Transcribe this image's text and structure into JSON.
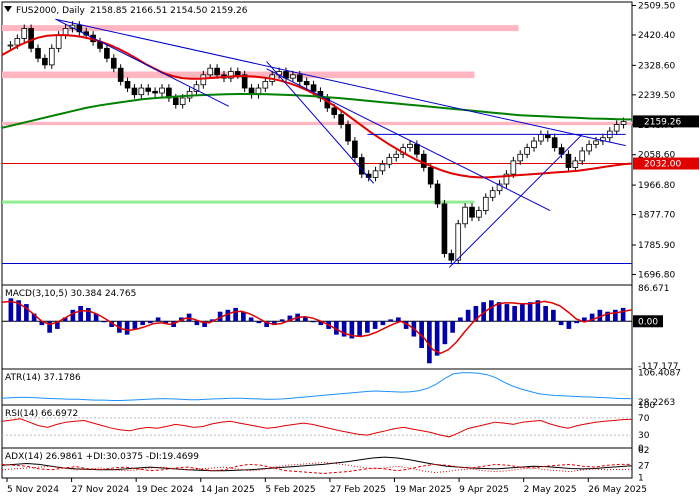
{
  "chart_data": {
    "type": "candlestick",
    "main": {
      "title": "FUS2000, Daily",
      "ohlc_text": "2158.85 2166.51 2154.50 2159.26",
      "ylim": [
        1665,
        2520
      ],
      "yticks": [
        "2509.50",
        "2420.40",
        "2328.60",
        "2239.50",
        "2148.70",
        "2058.60",
        "1966.80",
        "1877.70",
        "1785.90",
        "1696.80"
      ],
      "ytick_values": [
        2509.5,
        2420.4,
        2328.6,
        2239.5,
        2148.7,
        2058.6,
        1966.8,
        1877.7,
        1785.9,
        1696.8
      ],
      "price_tag": {
        "text": "2159.26",
        "value": 2159.26,
        "color": "#000000",
        "text_color": "#ffffff"
      },
      "level_tag": {
        "text": "2032.00",
        "value": 2032.0,
        "color": "#e00000",
        "text_color": "#ffffff"
      },
      "pink_zones": [
        [
          2432,
          2450
        ],
        [
          2290,
          2310
        ],
        [
          2148,
          2158
        ]
      ],
      "green_zones": [
        [
          1911,
          1920
        ]
      ],
      "pink_zones_extent": [
        "early",
        "mid",
        "full"
      ],
      "green_zone_extent": "mid",
      "red_level": 2032.0,
      "blue_level": 1730,
      "close_series": [
        2390,
        2410,
        2440,
        2380,
        2350,
        2330,
        2380,
        2420,
        2440,
        2450,
        2430,
        2420,
        2400,
        2380,
        2350,
        2320,
        2280,
        2260,
        2240,
        2260,
        2250,
        2245,
        2260,
        2230,
        2210,
        2230,
        2250,
        2270,
        2300,
        2320,
        2300,
        2290,
        2310,
        2300,
        2260,
        2240,
        2260,
        2280,
        2300,
        2310,
        2290,
        2300,
        2280,
        2270,
        2250,
        2230,
        2200,
        2180,
        2150,
        2100,
        2050,
        2000,
        1990,
        2010,
        2030,
        2050,
        2060,
        2080,
        2090,
        2060,
        2020,
        1970,
        1910,
        1760,
        1740,
        1850,
        1900,
        1870,
        1890,
        1930,
        1950,
        1970,
        2000,
        2040,
        2060,
        2080,
        2100,
        2120,
        2110,
        2080,
        2060,
        2020,
        2040,
        2070,
        2090,
        2100,
        2110,
        2130,
        2150,
        2159
      ],
      "ma_red": [
        2360,
        2375,
        2390,
        2402,
        2412,
        2418,
        2420,
        2420,
        2418,
        2414,
        2408,
        2400,
        2390,
        2378,
        2364,
        2348,
        2332,
        2318,
        2305,
        2296,
        2290,
        2288,
        2288,
        2290,
        2292,
        2294,
        2296,
        2296,
        2295,
        2292,
        2288,
        2282,
        2274,
        2264,
        2252,
        2238,
        2222,
        2205,
        2186,
        2166,
        2146,
        2126,
        2108,
        2090,
        2074,
        2058,
        2044,
        2032,
        2020,
        2010,
        2002,
        1996,
        1992,
        1990,
        1990,
        1992,
        1994,
        1996,
        1998,
        2000,
        2002,
        2004,
        2006,
        2008,
        2010,
        2014,
        2018,
        2022,
        2026,
        2030,
        2032
      ],
      "ma_green": [
        2140,
        2150,
        2160,
        2170,
        2180,
        2190,
        2200,
        2208,
        2214,
        2220,
        2226,
        2230,
        2233,
        2236,
        2238,
        2240,
        2241,
        2242,
        2242,
        2241,
        2240,
        2238,
        2236,
        2233,
        2230,
        2226,
        2222,
        2218,
        2214,
        2210,
        2206,
        2202,
        2198,
        2194,
        2190,
        2186,
        2182,
        2178,
        2176,
        2174,
        2172,
        2170,
        2168,
        2167,
        2166,
        2165
      ],
      "ma_green_xrange": [
        0.0,
        1.0
      ],
      "trendlines": [
        {
          "from": [
            0.085,
            2468
          ],
          "to": [
            0.99,
            2086
          ]
        },
        {
          "from": [
            0.085,
            2468
          ],
          "to": [
            0.36,
            2205
          ]
        },
        {
          "from": [
            0.42,
            2340
          ],
          "to": [
            0.59,
            1972
          ]
        },
        {
          "from": [
            0.42,
            2318
          ],
          "to": [
            0.87,
            1890
          ]
        },
        {
          "from": [
            0.58,
            2120
          ],
          "to": [
            0.99,
            2120
          ]
        },
        {
          "from": [
            0.71,
            1718
          ],
          "to": [
            0.92,
            2118
          ]
        }
      ]
    },
    "xticks": [
      "5 Nov 2024",
      "27 Nov 2024",
      "19 Dec 2024",
      "14 Jan 2025",
      "5 Feb 2025",
      "27 Feb 2025",
      "19 Mar 2025",
      "9 Apr 2025",
      "2 May 2025",
      "26 May 2025"
    ],
    "panels": [
      {
        "name": "macd",
        "label": "MACD(3,10,5) 30.384 24.765",
        "yticks": [
          "86.671",
          "0.00",
          "-117.177"
        ],
        "ylim": [
          -125,
          95
        ],
        "hist": [
          60,
          55,
          45,
          20,
          -10,
          -30,
          -20,
          10,
          30,
          40,
          35,
          20,
          0,
          -15,
          -30,
          -35,
          -20,
          -10,
          -5,
          10,
          -5,
          -15,
          10,
          20,
          -10,
          -15,
          5,
          25,
          30,
          35,
          25,
          10,
          -5,
          -15,
          -10,
          5,
          15,
          20,
          10,
          0,
          -10,
          -20,
          -35,
          -40,
          -45,
          -40,
          -30,
          -20,
          -10,
          5,
          10,
          -20,
          -40,
          -70,
          -110,
          -90,
          -60,
          -30,
          10,
          30,
          40,
          50,
          55,
          50,
          45,
          40,
          45,
          50,
          55,
          40,
          30,
          -10,
          -20,
          -5,
          10,
          20,
          30,
          25,
          30,
          35
        ],
        "signal": [
          50,
          52,
          48,
          35,
          18,
          0,
          -8,
          -2,
          10,
          22,
          28,
          26,
          18,
          6,
          -8,
          -20,
          -24,
          -20,
          -14,
          -6,
          -4,
          -8,
          -2,
          8,
          6,
          -2,
          -4,
          6,
          16,
          24,
          26,
          20,
          10,
          -2,
          -8,
          -6,
          2,
          10,
          12,
          8,
          0,
          -10,
          -22,
          -32,
          -38,
          -40,
          -36,
          -28,
          -18,
          -8,
          0,
          -10,
          -26,
          -46,
          -74,
          -84,
          -74,
          -54,
          -28,
          -4,
          16,
          32,
          44,
          48,
          48,
          46,
          46,
          48,
          52,
          48,
          40,
          24,
          6,
          -2,
          4,
          12,
          20,
          22,
          26,
          30
        ]
      },
      {
        "name": "atr",
        "label": "ATR(14) 37.1786",
        "yticks": [
          "106.4087",
          "28.2263"
        ],
        "ylim": [
          20,
          115
        ],
        "values": [
          38,
          39,
          40,
          40,
          39,
          38,
          37,
          36,
          35,
          35,
          34,
          33,
          33,
          32,
          32,
          33,
          34,
          35,
          36,
          37,
          36,
          35,
          34,
          34,
          35,
          36,
          37,
          38,
          38,
          37,
          36,
          35,
          35,
          36,
          38,
          40,
          42,
          44,
          46,
          48,
          50,
          52,
          54,
          56,
          57,
          56,
          55,
          54,
          55,
          58,
          64,
          75,
          90,
          102,
          105,
          105,
          104,
          100,
          92,
          80,
          70,
          62,
          56,
          50,
          47,
          45,
          44,
          43,
          42,
          41,
          40,
          39,
          38,
          37,
          37
        ]
      },
      {
        "name": "rsi",
        "label": "RSI(14) 66.6972",
        "yticks": [
          "100",
          "70",
          "30",
          "0"
        ],
        "ylim": [
          0,
          100
        ],
        "values": [
          62,
          65,
          68,
          60,
          52,
          48,
          55,
          60,
          62,
          64,
          58,
          52,
          46,
          42,
          40,
          45,
          48,
          46,
          50,
          55,
          52,
          48,
          50,
          56,
          60,
          62,
          58,
          54,
          50,
          46,
          48,
          52,
          55,
          58,
          55,
          50,
          45,
          40,
          36,
          32,
          30,
          35,
          40,
          45,
          48,
          44,
          40,
          36,
          30,
          26,
          35,
          45,
          50,
          55,
          60,
          58,
          55,
          60,
          62,
          64,
          56,
          50,
          46,
          52,
          56,
          60,
          62,
          64,
          66,
          67
        ]
      },
      {
        "name": "adx",
        "label": "ADX(14) 26.9861 +DI:30.0375 -DI:19.4699",
        "yticks": [
          "62",
          "27",
          "1"
        ],
        "ylim": [
          0,
          66
        ],
        "adx": [
          28,
          30,
          32,
          30,
          26,
          22,
          20,
          19,
          18,
          18,
          20,
          22,
          24,
          22,
          20,
          18,
          17,
          16,
          16,
          17,
          18,
          20,
          22,
          24,
          26,
          28,
          30,
          33,
          36,
          40,
          44,
          46,
          44,
          40,
          35,
          30,
          26,
          24,
          22,
          21,
          20,
          22,
          24,
          26,
          25,
          23,
          21,
          20,
          21,
          23,
          25,
          27
        ],
        "pdi": [
          30,
          28,
          26,
          20,
          18,
          22,
          25,
          20,
          18,
          22,
          24,
          20,
          16,
          18,
          22,
          24,
          20,
          16,
          18,
          26,
          30,
          28,
          22,
          16,
          14,
          12,
          10,
          12,
          14,
          18,
          22,
          20,
          16,
          20,
          26,
          30,
          28,
          24,
          22,
          26,
          30,
          28,
          24,
          22,
          26,
          28,
          30,
          26,
          24,
          28,
          30,
          30
        ],
        "mdi": [
          18,
          20,
          22,
          24,
          26,
          22,
          18,
          20,
          22,
          18,
          16,
          18,
          22,
          24,
          20,
          18,
          20,
          22,
          24,
          20,
          16,
          18,
          24,
          28,
          30,
          32,
          34,
          32,
          28,
          24,
          20,
          22,
          26,
          22,
          16,
          12,
          14,
          18,
          20,
          16,
          14,
          16,
          20,
          22,
          18,
          16,
          14,
          18,
          20,
          18,
          19,
          19
        ]
      }
    ],
    "colors": {
      "candle_up": "#000000",
      "candle_down": "#000000",
      "ma_red": "#e00000",
      "ma_green": "#008000",
      "trend": "#0000cc",
      "pink": "#ffb6c1",
      "green": "#90ee90",
      "macd_hist": "#0000aa",
      "macd_signal": "#e00000",
      "atr": "#1e90ff",
      "rsi": "#e00000",
      "adx": "#000000",
      "pdi": "#e00000",
      "mdi": "#e00000",
      "grid": "#bbbbbb"
    }
  }
}
